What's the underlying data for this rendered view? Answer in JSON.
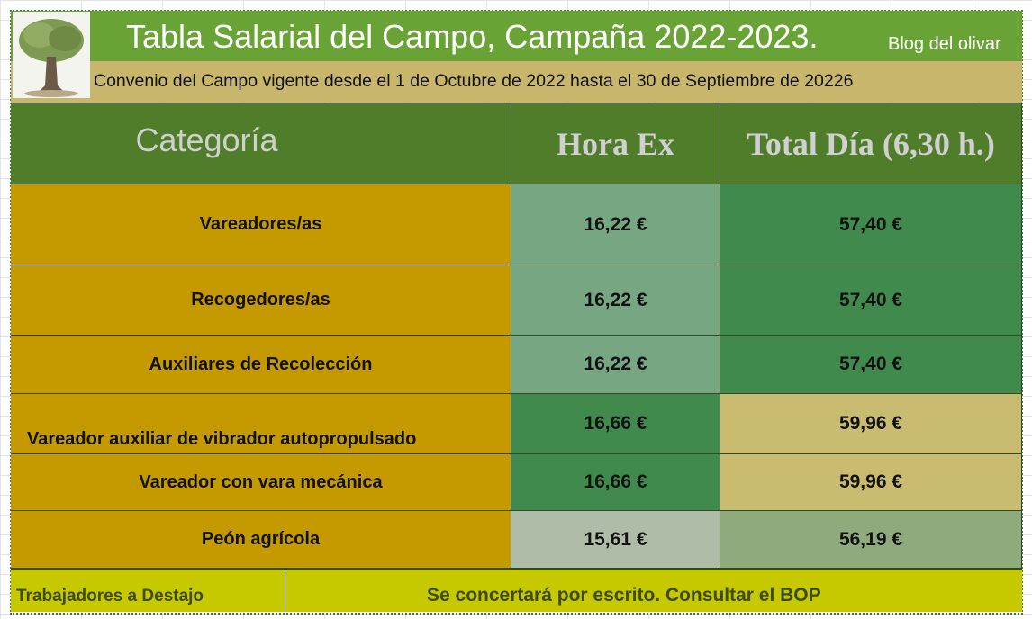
{
  "header": {
    "title": "Tabla Salarial del Campo, Campaña 2022-2023.",
    "link": "Blog del olivar",
    "subtitle": "Convenio del Campo vigente desde el 1 de Octubre de 2022 hasta el 30 de Septiembre de 20226"
  },
  "table": {
    "columns": [
      "Categoría",
      "Hora Ex",
      "Total Día (6,30 h.)"
    ],
    "rows": [
      [
        "Vareadores/as",
        "16,22 €",
        "57,40 €"
      ],
      [
        "Recogedores/as",
        "16,22 €",
        "57,40 €"
      ],
      [
        "Auxiliares de Recolección",
        "16,22 €",
        "57,40 €"
      ],
      [
        "Vareador auxiliar de vibrador autopropulsado",
        "16,66 €",
        "59,96 €"
      ],
      [
        "Vareador con vara mecánica",
        "16,66 €",
        "59,96 €"
      ],
      [
        "Peón agrícola",
        "15,61 €",
        "56,19 €"
      ]
    ]
  },
  "footer": {
    "label": "Trabajadores a Destajo",
    "text": "Se concertará por escrito. Consultar el BOP"
  }
}
